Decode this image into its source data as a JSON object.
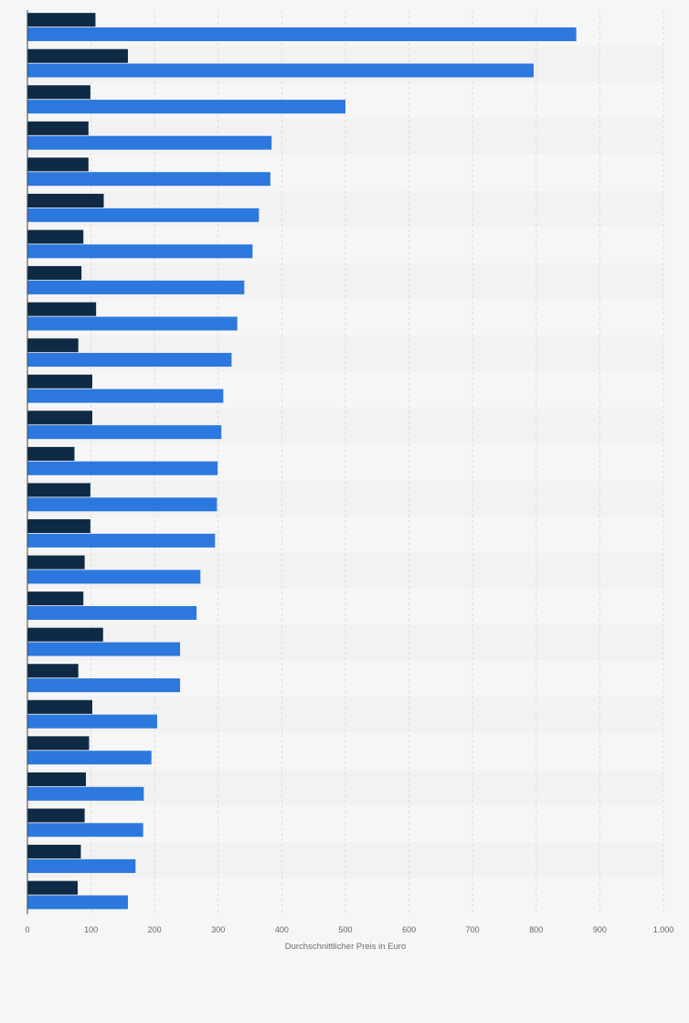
{
  "chart_data": {
    "type": "bar",
    "orientation": "horizontal",
    "title": "",
    "xlabel": "Durchschnittlicher Preis in Euro",
    "ylabel": "",
    "xlim": [
      0,
      1000
    ],
    "xticks": [
      0,
      100,
      200,
      300,
      400,
      500,
      600,
      700,
      800,
      900,
      1000
    ],
    "xtick_labels": [
      "0",
      "100",
      "200",
      "300",
      "400",
      "500",
      "600",
      "700",
      "800",
      "900",
      "1.000"
    ],
    "grid": true,
    "legend": "none",
    "category_count": 25,
    "series": [
      {
        "color": "#0f2a44",
        "values": [
          107,
          158,
          99,
          96,
          96,
          120,
          88,
          85,
          108,
          80,
          102,
          102,
          74,
          99,
          99,
          90,
          88,
          119,
          80,
          102,
          97,
          92,
          90,
          84,
          79
        ]
      },
      {
        "color": "#2c78de",
        "values": [
          863,
          796,
          500,
          384,
          382,
          364,
          354,
          341,
          330,
          321,
          308,
          305,
          299,
          298,
          295,
          272,
          266,
          240,
          240,
          204,
          195,
          183,
          182,
          170,
          158
        ]
      }
    ]
  }
}
